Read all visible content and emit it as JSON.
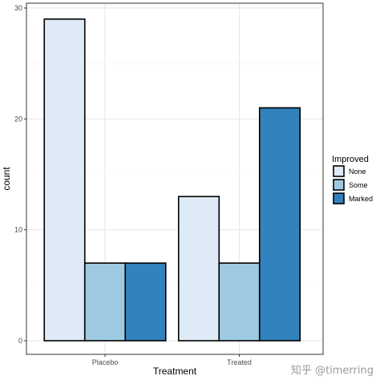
{
  "chart_data": {
    "type": "bar",
    "subtype": "grouped",
    "categories": [
      "Placebo",
      "Treated"
    ],
    "series": [
      {
        "name": "None",
        "color": "#deebf7",
        "values": [
          29,
          13
        ]
      },
      {
        "name": "Some",
        "color": "#9ecae1",
        "values": [
          7,
          7
        ]
      },
      {
        "name": "Marked",
        "color": "#3182bd",
        "values": [
          7,
          21
        ]
      }
    ],
    "xlabel": "Treatment",
    "ylabel": "count",
    "ylim": [
      0,
      30
    ],
    "yticks": [
      0,
      10,
      20,
      30
    ],
    "grid": true,
    "legend": {
      "title": "Improved",
      "position": "right"
    }
  },
  "watermark": "知乎 @timerring"
}
